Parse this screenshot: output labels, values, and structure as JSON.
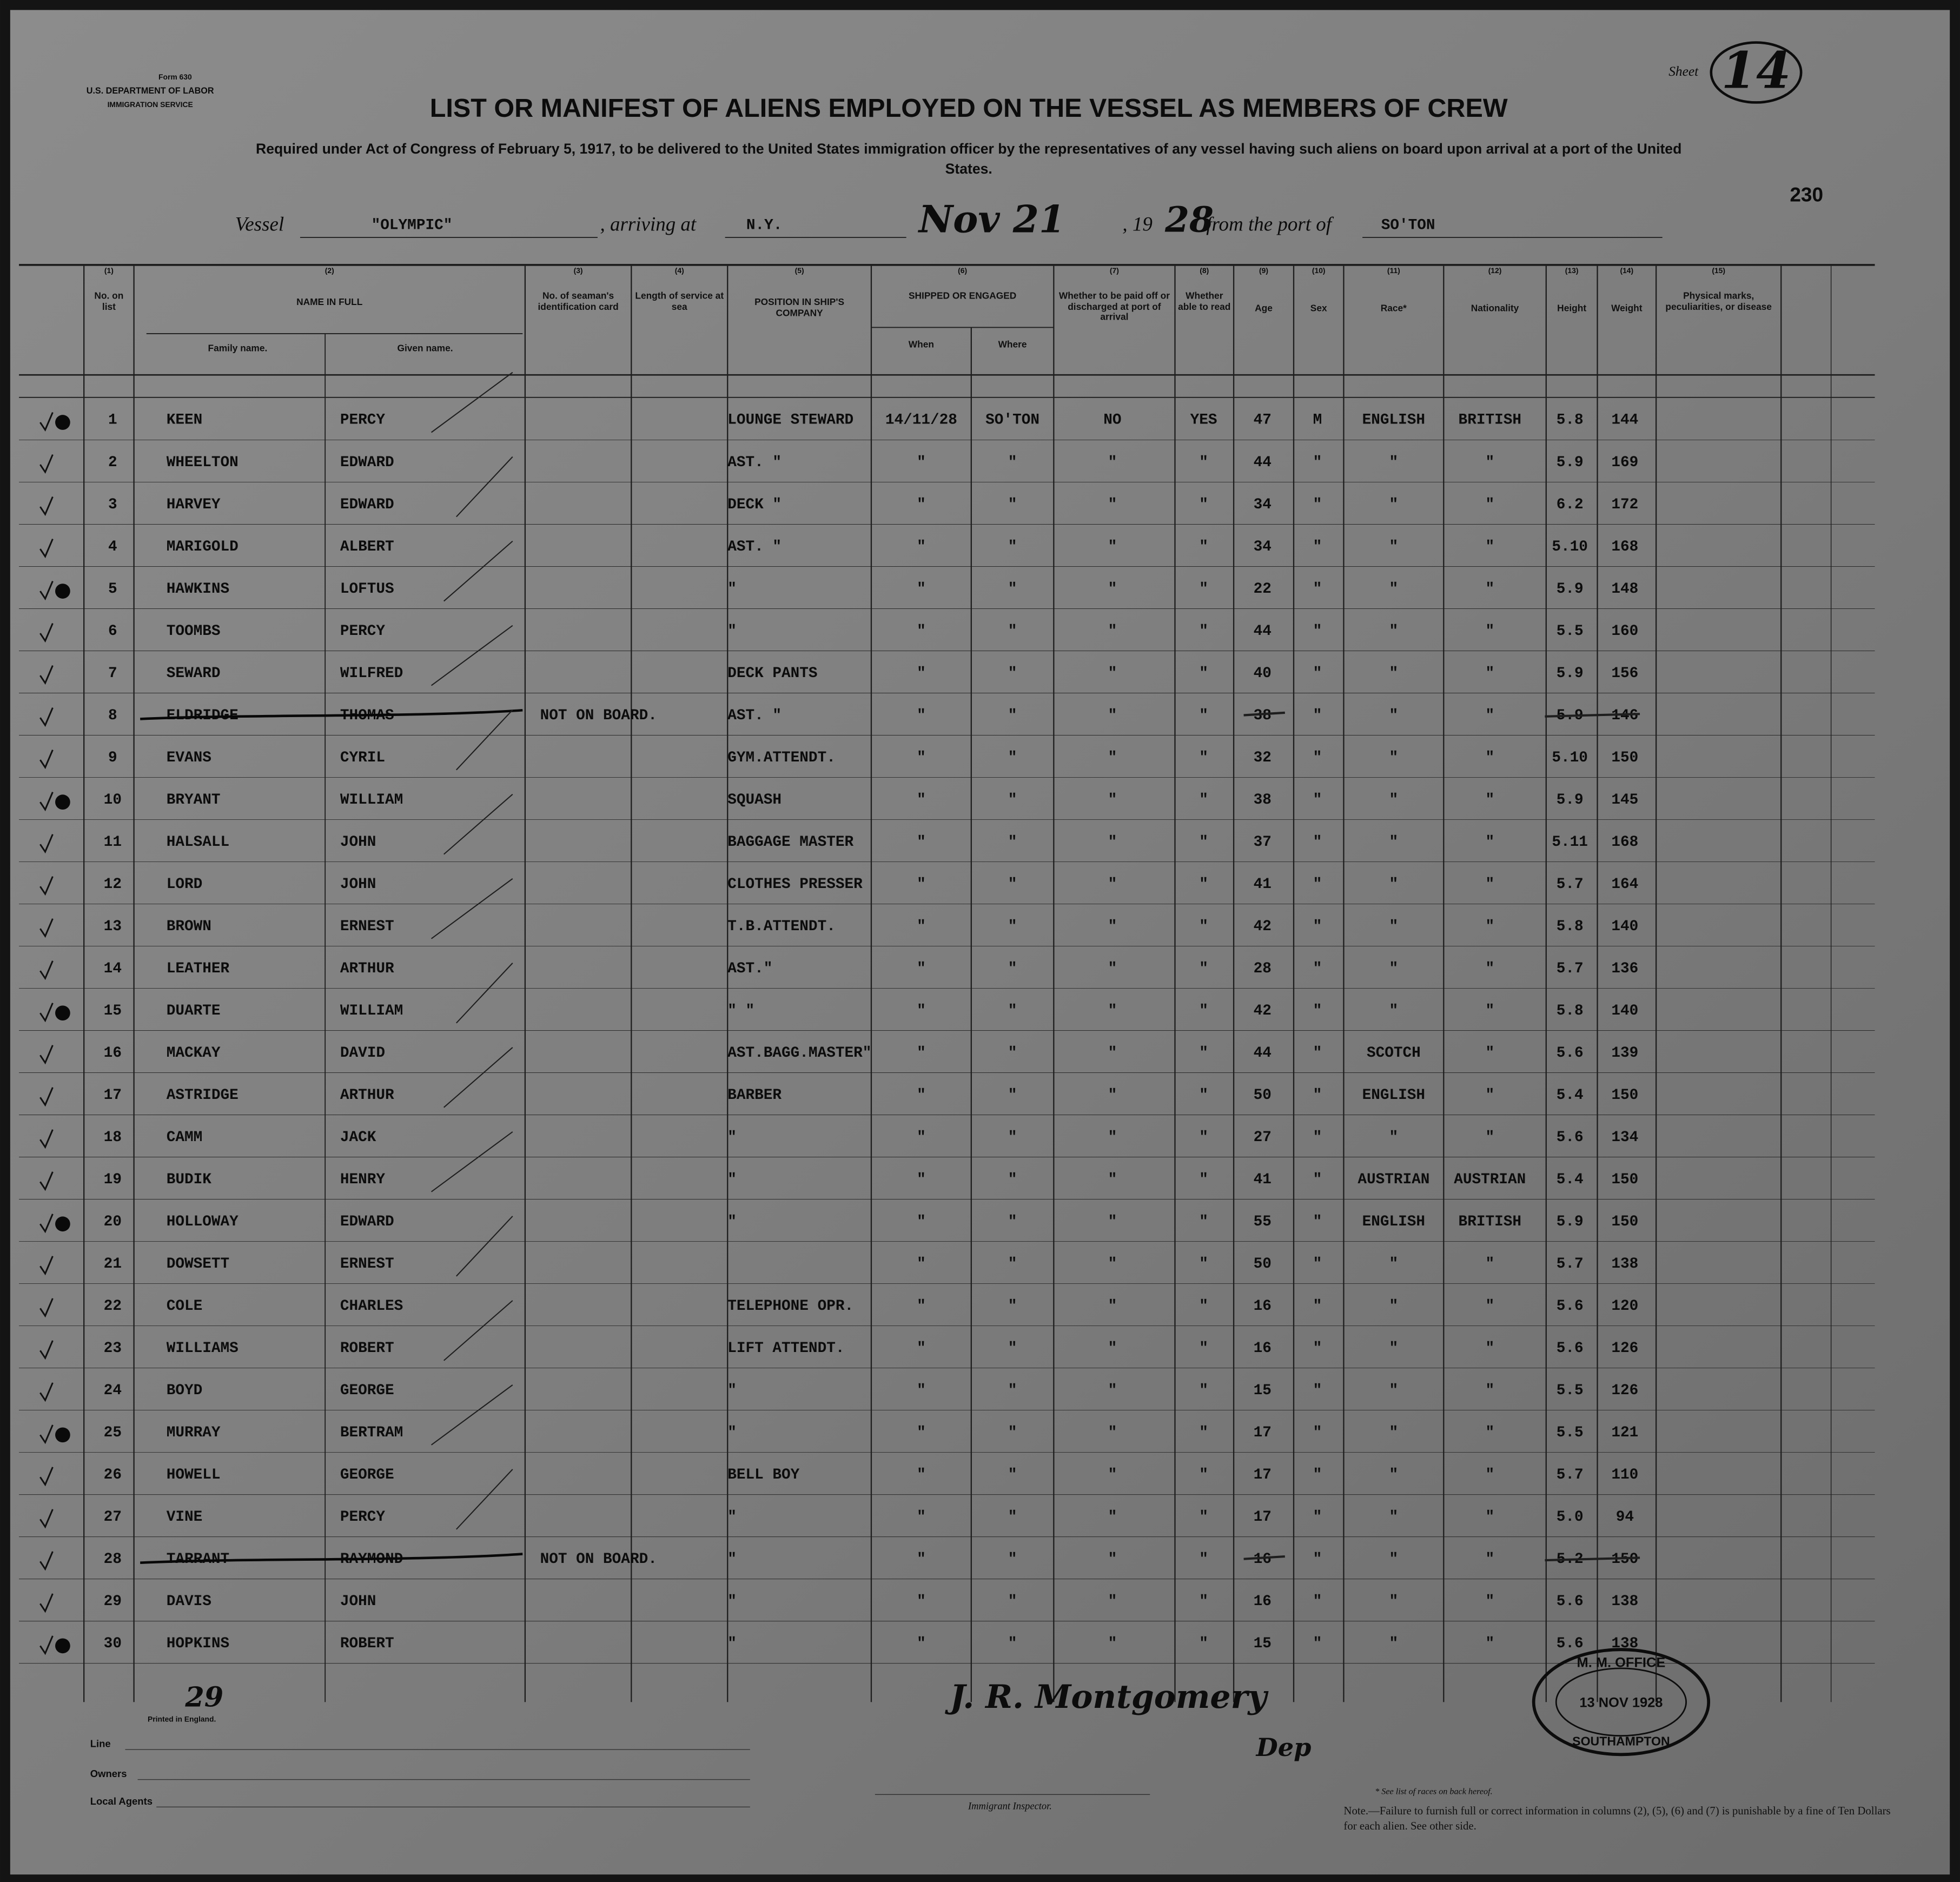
{
  "form": {
    "number": "Form 630",
    "department": "U.S. DEPARTMENT OF LABOR",
    "service": "IMMIGRATION SERVICE"
  },
  "sheet": {
    "label": "Sheet",
    "number": "14"
  },
  "title": "LIST OR MANIFEST OF ALIENS EMPLOYED ON THE VESSEL AS MEMBERS OF CREW",
  "subtitle": "Required under Act of Congress of February 5, 1917, to be delivered to the United States immigration officer by the representatives of any vessel having such aliens on board upon arrival at a port of the United States.",
  "page_number": "230",
  "vessel": {
    "label": "Vessel",
    "name": "\"OLYMPIC\"",
    "arriving_label": ", arriving at",
    "port": "N.Y.",
    "date": "Nov 21",
    "year_label": ", 19",
    "year": "28",
    "from_label": "from the port of",
    "from_port": "SO'TON"
  },
  "columns": [
    {
      "num": "(1)",
      "label": "No. on list"
    },
    {
      "num": "(2)",
      "label": "NAME IN FULL"
    },
    {
      "num": "(3)",
      "label": "No. of seaman's identification card"
    },
    {
      "num": "(4)",
      "label": "Length of service at sea"
    },
    {
      "num": "(5)",
      "label": "POSITION IN SHIP'S COMPANY"
    },
    {
      "num": "(6)",
      "label": "SHIPPED OR ENGAGED"
    },
    {
      "num": "(7)",
      "label": "Whether to be paid off or discharged at port of arrival"
    },
    {
      "num": "(8)",
      "label": "Whether able to read"
    },
    {
      "num": "(9)",
      "label": "Age"
    },
    {
      "num": "(10)",
      "label": "Sex"
    },
    {
      "num": "(11)",
      "label": "Race*"
    },
    {
      "num": "(12)",
      "label": "Nationality"
    },
    {
      "num": "(13)",
      "label": "Height"
    },
    {
      "num": "(14)",
      "label": "Weight"
    },
    {
      "num": "(15)",
      "label": "Physical marks, peculiarities, or disease"
    }
  ],
  "subheaders": {
    "family": "Family name.",
    "given": "Given name.",
    "when": "When",
    "where": "Where"
  },
  "rows": [
    {
      "cells": [
        "1",
        "KEEN",
        "PERCY",
        null,
        null,
        "LOUNGE STEWARD",
        "14/11/28",
        "SO'TON",
        "NO",
        "YES",
        "47",
        "M",
        "ENGLISH",
        "BRITISH",
        "5.8",
        "144"
      ]
    },
    {
      "cells": [
        "2",
        "WHEELTON",
        "EDWARD",
        null,
        null,
        "AST. \"",
        "\"",
        "\"",
        "\"",
        "\"",
        "44",
        "\"",
        "\"",
        "\"",
        "5.9",
        "169"
      ]
    },
    {
      "cells": [
        "3",
        "HARVEY",
        "EDWARD",
        null,
        null,
        "DECK \"",
        "\"",
        "\"",
        "\"",
        "\"",
        "34",
        "\"",
        "\"",
        "\"",
        "6.2",
        "172"
      ]
    },
    {
      "cells": [
        "4",
        "MARIGOLD",
        "ALBERT",
        null,
        null,
        "AST. \"",
        "\"",
        "\"",
        "\"",
        "\"",
        "34",
        "\"",
        "\"",
        "\"",
        "5.10",
        "168"
      ]
    },
    {
      "cells": [
        "5",
        "HAWKINS",
        "LOFTUS",
        null,
        null,
        "\"",
        "\"",
        "\"",
        "\"",
        "\"",
        "22",
        "\"",
        "\"",
        "\"",
        "5.9",
        "148"
      ]
    },
    {
      "cells": [
        "6",
        "TOOMBS",
        "PERCY",
        null,
        null,
        "\"",
        "\"",
        "\"",
        "\"",
        "\"",
        "44",
        "\"",
        "\"",
        "\"",
        "5.5",
        "160"
      ]
    },
    {
      "cells": [
        "7",
        "SEWARD",
        "WILFRED",
        null,
        null,
        "DECK PANTS",
        "\"",
        "\"",
        "\"",
        "\"",
        "40",
        "\"",
        "\"",
        "\"",
        "5.9",
        "156"
      ]
    },
    {
      "cells": [
        "8",
        "ELDRIDGE",
        "THOMAS",
        "NOT ON BOARD.",
        null,
        "AST. \"",
        "\"",
        "\"",
        "\"",
        "\"",
        "38",
        "\"",
        "\"",
        "\"",
        "5.9",
        "146"
      ],
      "struck": true
    },
    {
      "cells": [
        "9",
        "EVANS",
        "CYRIL",
        null,
        null,
        "GYM.ATTENDT.",
        "\"",
        "\"",
        "\"",
        "\"",
        "32",
        "\"",
        "\"",
        "\"",
        "5.10",
        "150"
      ]
    },
    {
      "cells": [
        "10",
        "BRYANT",
        "WILLIAM",
        null,
        null,
        "SQUASH",
        "\"",
        "\"",
        "\"",
        "\"",
        "38",
        "\"",
        "\"",
        "\"",
        "5.9",
        "145"
      ]
    },
    {
      "cells": [
        "11",
        "HALSALL",
        "JOHN",
        null,
        null,
        "BAGGAGE MASTER",
        "\"",
        "\"",
        "\"",
        "\"",
        "37",
        "\"",
        "\"",
        "\"",
        "5.11",
        "168"
      ]
    },
    {
      "cells": [
        "12",
        "LORD",
        "JOHN",
        null,
        null,
        "CLOTHES PRESSER",
        "\"",
        "\"",
        "\"",
        "\"",
        "41",
        "\"",
        "\"",
        "\"",
        "5.7",
        "164"
      ]
    },
    {
      "cells": [
        "13",
        "BROWN",
        "ERNEST",
        null,
        null,
        "T.B.ATTENDT.",
        "\"",
        "\"",
        "\"",
        "\"",
        "42",
        "\"",
        "\"",
        "\"",
        "5.8",
        "140"
      ]
    },
    {
      "cells": [
        "14",
        "LEATHER",
        "ARTHUR",
        null,
        null,
        "AST.\"",
        "\"",
        "\"",
        "\"",
        "\"",
        "28",
        "\"",
        "\"",
        "\"",
        "5.7",
        "136"
      ]
    },
    {
      "cells": [
        "15",
        "DUARTE",
        "WILLIAM",
        null,
        null,
        "\" \"",
        "\"",
        "\"",
        "\"",
        "\"",
        "42",
        "\"",
        "\"",
        "\"",
        "5.8",
        "140"
      ]
    },
    {
      "cells": [
        "16",
        "MACKAY",
        "DAVID",
        null,
        null,
        "AST.BAGG.MASTER\"",
        "\"",
        "\"",
        "\"",
        "\"",
        "44",
        "\"",
        "SCOTCH",
        "\"",
        "5.6",
        "139"
      ]
    },
    {
      "cells": [
        "17",
        "ASTRIDGE",
        "ARTHUR",
        null,
        null,
        "BARBER",
        "\"",
        "\"",
        "\"",
        "\"",
        "50",
        "\"",
        "ENGLISH",
        "\"",
        "5.4",
        "150"
      ]
    },
    {
      "cells": [
        "18",
        "CAMM",
        "JACK",
        null,
        null,
        "\"",
        "\"",
        "\"",
        "\"",
        "\"",
        "27",
        "\"",
        "\"",
        "\"",
        "5.6",
        "134"
      ]
    },
    {
      "cells": [
        "19",
        "BUDIK",
        "HENRY",
        null,
        null,
        "\"",
        "\"",
        "\"",
        "\"",
        "\"",
        "41",
        "\"",
        "AUSTRIAN",
        "AUSTRIAN",
        "5.4",
        "150"
      ]
    },
    {
      "cells": [
        "20",
        "HOLLOWAY",
        "EDWARD",
        null,
        null,
        "\"",
        "\"",
        "\"",
        "\"",
        "\"",
        "55",
        "\"",
        "ENGLISH",
        "BRITISH",
        "5.9",
        "150"
      ]
    },
    {
      "cells": [
        "21",
        "DOWSETT",
        "ERNEST",
        null,
        null,
        null,
        "\"",
        "\"",
        "\"",
        "\"",
        "50",
        "\"",
        "\"",
        "\"",
        "5.7",
        "138"
      ]
    },
    {
      "cells": [
        "22",
        "COLE",
        "CHARLES",
        null,
        null,
        "TELEPHONE OPR.",
        "\"",
        "\"",
        "\"",
        "\"",
        "16",
        "\"",
        "\"",
        "\"",
        "5.6",
        "120"
      ]
    },
    {
      "cells": [
        "23",
        "WILLIAMS",
        "ROBERT",
        null,
        null,
        "LIFT ATTENDT.",
        "\"",
        "\"",
        "\"",
        "\"",
        "16",
        "\"",
        "\"",
        "\"",
        "5.6",
        "126"
      ]
    },
    {
      "cells": [
        "24",
        "BOYD",
        "GEORGE",
        null,
        null,
        "\"",
        "\"",
        "\"",
        "\"",
        "\"",
        "15",
        "\"",
        "\"",
        "\"",
        "5.5",
        "126"
      ]
    },
    {
      "cells": [
        "25",
        "MURRAY",
        "BERTRAM",
        null,
        null,
        "\"",
        "\"",
        "\"",
        "\"",
        "\"",
        "17",
        "\"",
        "\"",
        "\"",
        "5.5",
        "121"
      ]
    },
    {
      "cells": [
        "26",
        "HOWELL",
        "GEORGE",
        null,
        null,
        "BELL BOY",
        "\"",
        "\"",
        "\"",
        "\"",
        "17",
        "\"",
        "\"",
        "\"",
        "5.7",
        "110"
      ]
    },
    {
      "cells": [
        "27",
        "VINE",
        "PERCY",
        null,
        null,
        "\"",
        "\"",
        "\"",
        "\"",
        "\"",
        "17",
        "\"",
        "\"",
        "\"",
        "5.0",
        "94"
      ]
    },
    {
      "cells": [
        "28",
        "TARRANT",
        "RAYMOND",
        "NOT ON BOARD.",
        null,
        "\"",
        "\"",
        "\"",
        "\"",
        "\"",
        "16",
        "\"",
        "\"",
        "\"",
        "5.2",
        "150"
      ],
      "struck": true
    },
    {
      "cells": [
        "29",
        "DAVIS",
        "JOHN",
        null,
        null,
        "\"",
        "\"",
        "\"",
        "\"",
        "\"",
        "16",
        "\"",
        "\"",
        "\"",
        "5.6",
        "138"
      ]
    },
    {
      "cells": [
        "30",
        "HOPKINS",
        "ROBERT",
        null,
        null,
        "\"",
        "\"",
        "\"",
        "\"",
        "\"",
        "15",
        "\"",
        "\"",
        "\"",
        "5.6",
        "138"
      ]
    }
  ],
  "footer": {
    "count": "29",
    "printer": "Printed in England.",
    "line": "Line",
    "owners": "Owners",
    "agents": "Local Agents",
    "inspector": "Immigrant Inspector.",
    "race_note": "* See list of races on back hereof.",
    "note": "Note.—Failure to furnish full or correct information in columns (2), (5), (6) and (7) is punishable by a fine of Ten Dollars for each alien. See other side.",
    "signature": "J. R. Montgomery",
    "signature_title": "Dep"
  },
  "stamp": {
    "office": "M. M. OFFICE",
    "date": "13 NOV 1928",
    "place": "SOUTHAMPTON"
  }
}
